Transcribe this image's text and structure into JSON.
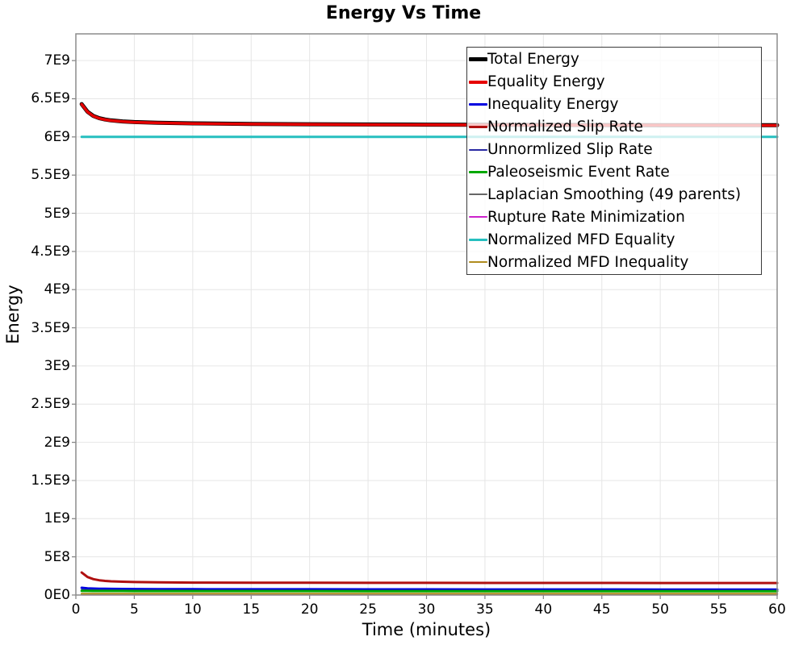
{
  "title": "Energy Vs Time",
  "chart_data": {
    "type": "line",
    "title": "Energy Vs Time",
    "xlabel": "Time (minutes)",
    "ylabel": "Energy",
    "xlim": [
      0,
      60
    ],
    "ylim": [
      0,
      7350000000
    ],
    "grid": true,
    "legend_position": "top-right",
    "x_ticks": [
      0,
      5,
      10,
      15,
      20,
      25,
      30,
      35,
      40,
      45,
      50,
      55,
      60
    ],
    "x_tick_labels": [
      "0",
      "5",
      "10",
      "15",
      "20",
      "25",
      "30",
      "35",
      "40",
      "45",
      "50",
      "55",
      "60"
    ],
    "y_ticks": [
      0,
      500000000,
      1000000000,
      1500000000,
      2000000000,
      2500000000,
      3000000000,
      3500000000,
      4000000000,
      4500000000,
      5000000000,
      5500000000,
      6000000000,
      6500000000,
      7000000000
    ],
    "y_tick_labels": [
      "0E0",
      "5E8",
      "1E9",
      "1.5E9",
      "2E9",
      "2.5E9",
      "3E9",
      "3.5E9",
      "4E9",
      "4.5E9",
      "5E9",
      "5.5E9",
      "6E9",
      "6.5E9",
      "7E9"
    ],
    "x": [
      0.5,
      1,
      1.5,
      2,
      2.5,
      3,
      4,
      5,
      7,
      10,
      15,
      20,
      25,
      30,
      35,
      40,
      45,
      50,
      55,
      60
    ],
    "series": [
      {
        "name": "Total Energy",
        "color": "#000000",
        "line_width": 5,
        "values": [
          6430000000,
          6330000000,
          6275000000,
          6245000000,
          6228000000,
          6217000000,
          6203000000,
          6195000000,
          6186000000,
          6178000000,
          6170000000,
          6166000000,
          6163000000,
          6161000000,
          6159000000,
          6158000000,
          6156000000,
          6155000000,
          6154000000,
          6153000000
        ]
      },
      {
        "name": "Equality Energy",
        "color": "#e60000",
        "line_width": 3.5,
        "values": [
          6428000000,
          6328000000,
          6273000000,
          6243000000,
          6226000000,
          6215000000,
          6201000000,
          6193000000,
          6184000000,
          6176000000,
          6168000000,
          6164000000,
          6161000000,
          6159000000,
          6157000000,
          6156000000,
          6154000000,
          6153000000,
          6152000000,
          6151000000
        ]
      },
      {
        "name": "Inequality Energy",
        "color": "#0000e0",
        "line_width": 3,
        "values": [
          95000000,
          88000000,
          84000000,
          82000000,
          81000000,
          80000000,
          79000000,
          78500000,
          77500000,
          76500000,
          75000000,
          74500000,
          74000000,
          73500000,
          73000000,
          72800000,
          72500000,
          72200000,
          72000000,
          72000000
        ]
      },
      {
        "name": "Normalized Slip Rate",
        "color": "#b01010",
        "line_width": 3,
        "values": [
          295000000,
          235000000,
          208000000,
          193000000,
          185000000,
          180000000,
          174000000,
          170000000,
          166000000,
          163000000,
          161000000,
          160000000,
          159500000,
          159000000,
          158500000,
          158000000,
          158000000,
          157500000,
          157500000,
          157000000
        ]
      },
      {
        "name": "Unnormlized Slip Rate",
        "color": "#2929a3",
        "line_width": 2,
        "values": [
          68000000,
          65000000,
          64000000,
          63000000,
          62500000,
          62000000,
          61000000,
          60500000,
          60000000,
          59500000,
          59000000,
          58500000,
          58000000,
          58000000,
          57500000,
          57500000,
          57000000,
          57000000,
          57000000,
          57000000
        ]
      },
      {
        "name": "Paleoseismic Event Rate",
        "color": "#00a800",
        "line_width": 3,
        "values": [
          54000000,
          53500000,
          53000000,
          53000000,
          52800000,
          52600000,
          52400000,
          52200000,
          52000000,
          51800000,
          51500000,
          51300000,
          51200000,
          51000000,
          51000000,
          50800000,
          50700000,
          50600000,
          50500000,
          50500000
        ]
      },
      {
        "name": "Laplacian Smoothing (49 parents)",
        "color": "#666666",
        "line_width": 2,
        "values": [
          8000000,
          8000000,
          8000000,
          8000000,
          8000000,
          8000000,
          8000000,
          8000000,
          8000000,
          8000000,
          8000000,
          8000000,
          8000000,
          8000000,
          8000000,
          8000000,
          8000000,
          8000000,
          8000000,
          8000000
        ]
      },
      {
        "name": "Rupture Rate Minimization",
        "color": "#cc22cc",
        "line_width": 2,
        "values": [
          4000000,
          4000000,
          4000000,
          4000000,
          4000000,
          4000000,
          4000000,
          4000000,
          4000000,
          4000000,
          4000000,
          4000000,
          4000000,
          4000000,
          4000000,
          4000000,
          4000000,
          4000000,
          4000000,
          4000000
        ]
      },
      {
        "name": "Normalized MFD Equality",
        "color": "#26bfbf",
        "line_width": 3,
        "values": [
          6000000000,
          6000000000,
          6000000000,
          6000000000,
          6000000000,
          6000000000,
          6000000000,
          6000000000,
          6000000000,
          6000000000,
          6000000000,
          6000000000,
          6000000000,
          6000000000,
          6000000000,
          6000000000,
          6000000000,
          6000000000,
          6000000000,
          6000000000
        ]
      },
      {
        "name": "Normalized MFD Inequality",
        "color": "#b08c1e",
        "line_width": 2.5,
        "values": [
          16000000,
          16000000,
          16000000,
          16000000,
          16000000,
          16000000,
          16000000,
          16000000,
          16000000,
          16000000,
          16000000,
          16000000,
          16000000,
          16000000,
          16000000,
          16000000,
          16000000,
          16000000,
          16000000,
          16000000
        ]
      }
    ],
    "colors": {
      "grid": "#e6e6e6",
      "plot_border": "#8c8c8c",
      "tick": "#808080",
      "background": "#ffffff"
    }
  }
}
